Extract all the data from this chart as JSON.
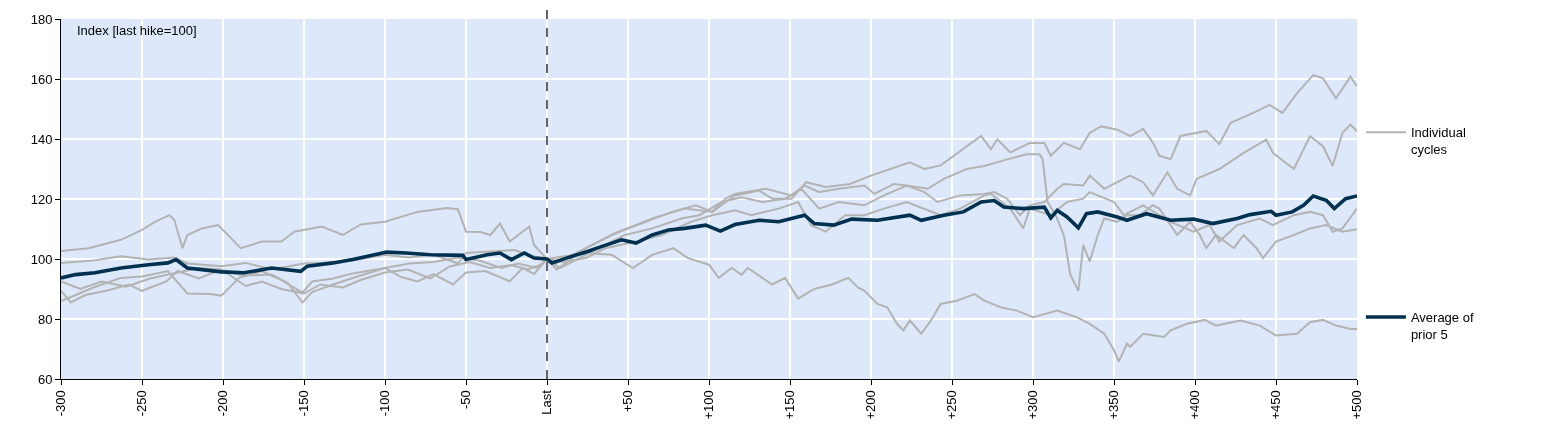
{
  "chart_data": {
    "type": "line",
    "ylabel": "Index [last hike=100]",
    "xlim": [
      -300,
      500
    ],
    "xticks": [
      -300,
      -250,
      -200,
      -150,
      -100,
      -50,
      {
        "value": 0,
        "label": "Last"
      },
      {
        "value": 50,
        "label": "+50"
      },
      {
        "value": 100,
        "label": "+100"
      },
      {
        "value": 150,
        "label": "+150"
      },
      {
        "value": 200,
        "label": "+200"
      },
      {
        "value": 250,
        "label": "+250"
      },
      {
        "value": 300,
        "label": "+300"
      },
      {
        "value": 350,
        "label": "+350"
      },
      {
        "value": 400,
        "label": "+400"
      },
      {
        "value": 450,
        "label": "+450"
      },
      {
        "value": 500,
        "label": "+500"
      }
    ],
    "ylim": [
      60,
      180
    ],
    "yticks": [
      60,
      80,
      100,
      120,
      140,
      160,
      180
    ],
    "grid": true,
    "legend": "right",
    "line_style": "solid",
    "ref_lines": [
      {
        "axis": "x",
        "value": 0,
        "color": "#000000",
        "line_style": "dashed"
      }
    ],
    "series": [
      {
        "name": "Individual cycles",
        "color": "#b3b3b3",
        "x": [
          -300,
          -283,
          -263,
          -250,
          -242,
          -233,
          -230,
          -225,
          -222,
          -213,
          -203,
          -193,
          -189,
          -176,
          -164,
          -156,
          -139,
          -126,
          -115,
          -100,
          -80,
          -62,
          -55,
          -50,
          -41,
          -35,
          -29,
          -23,
          -11,
          -8,
          0,
          5,
          24,
          40,
          65,
          85,
          102,
          116,
          131,
          139,
          151,
          160,
          172,
          187,
          200,
          224,
          233,
          243,
          268,
          274,
          278,
          286,
          298,
          307,
          311,
          319,
          329,
          335,
          342,
          352,
          360,
          368,
          374,
          378,
          385,
          391,
          407,
          415,
          422,
          438,
          446,
          454,
          463,
          473,
          479,
          487,
          496,
          500
        ],
        "values": [
          102.7,
          103.6,
          106.4,
          109.7,
          112.4,
          114.6,
          113,
          103.6,
          108,
          110.2,
          111.3,
          105.8,
          103.6,
          105.8,
          105.8,
          109.1,
          110.8,
          108,
          111.5,
          112.4,
          115.7,
          117,
          116.6,
          109.1,
          109,
          108,
          111.8,
          105.8,
          110.8,
          104.7,
          100,
          98.5,
          103.6,
          108,
          113.5,
          116.8,
          115.7,
          121.2,
          122.8,
          120.1,
          120.1,
          125.6,
          124,
          125,
          127.8,
          132.2,
          130,
          131.2,
          141,
          136.6,
          139.9,
          135.5,
          138.7,
          138.7,
          134.4,
          138.7,
          136.6,
          142,
          144.2,
          143.1,
          141,
          143.4,
          138.8,
          134.4,
          133.3,
          141,
          142.7,
          138.3,
          145.4,
          149.2,
          151.4,
          148.7,
          155.3,
          161.3,
          160.2,
          153.6,
          160.8,
          157.5
        ]
      },
      {
        "color": "#b3b3b3",
        "x": [
          -300,
          -280,
          -263,
          -246,
          -230,
          -222,
          -201,
          -186,
          -170,
          -150,
          -132,
          -120,
          -100,
          -85,
          -70,
          -55,
          -50,
          -35,
          -20,
          -10,
          0,
          8,
          24,
          36,
          48,
          65,
          83,
          94,
          108,
          120,
          133,
          147,
          157,
          168,
          180,
          196,
          208,
          222,
          233,
          241,
          255,
          270,
          276,
          284,
          292,
          298,
          307,
          315,
          319,
          331,
          335,
          344,
          352,
          360,
          368,
          374,
          383,
          389,
          397,
          401,
          415,
          430,
          444,
          448,
          461,
          471,
          479,
          485,
          491,
          496,
          500
        ],
        "values": [
          98.7,
          99.5,
          100.9,
          99.8,
          100.5,
          98.5,
          97.6,
          98.7,
          96.5,
          98.5,
          98.8,
          99.5,
          101.4,
          100.5,
          101.5,
          98.5,
          102,
          102.5,
          103,
          101,
          100,
          97,
          101.4,
          104.7,
          108,
          110.2,
          113.5,
          114.6,
          119,
          120.6,
          119,
          120.1,
          123.4,
          116.8,
          119,
          117.9,
          121.2,
          124.5,
          122.3,
          119,
          121.2,
          121.7,
          122.3,
          120.1,
          114.6,
          117.9,
          119,
          123.4,
          125,
          124.5,
          127.8,
          123.4,
          125.6,
          127.8,
          125.6,
          121.2,
          128.9,
          123.4,
          121.2,
          126.7,
          130,
          135.4,
          139.8,
          135.4,
          130,
          140.9,
          137.6,
          131,
          142,
          144.8,
          142.6
        ]
      },
      {
        "color": "#b3b3b3",
        "x": [
          -300,
          -291,
          -280,
          -263,
          -250,
          -234,
          -222,
          -208,
          -201,
          -190,
          -176,
          -164,
          -151,
          -145,
          -132,
          -120,
          -100,
          -90,
          -80,
          -70,
          -58,
          -50,
          -38,
          -23,
          -15,
          -8,
          0,
          6,
          24,
          44,
          61,
          77,
          92,
          102,
          110,
          116,
          135,
          151,
          159,
          168,
          180,
          196,
          202,
          214,
          222,
          235,
          245,
          259,
          270,
          284,
          296,
          304,
          306,
          309,
          314,
          319,
          323,
          328,
          331,
          335,
          340,
          344,
          352,
          358,
          366,
          374,
          378,
          389,
          397,
          403,
          407,
          413,
          424,
          430,
          438,
          442,
          450,
          461,
          471,
          481,
          491,
          500
        ],
        "values": [
          86,
          88,
          90.5,
          93.7,
          94.2,
          96,
          88.5,
          88.3,
          87.8,
          93.7,
          96,
          93,
          88.8,
          92.5,
          93.5,
          95.2,
          97,
          94,
          92.5,
          95,
          91.5,
          95.5,
          96,
          92.6,
          97,
          95,
          100,
          96.5,
          103.6,
          109.1,
          112.4,
          115.7,
          117.9,
          115.7,
          120.1,
          121.7,
          123.4,
          121.2,
          124.5,
          122.3,
          123.4,
          124.5,
          121.7,
          125,
          124.5,
          123.4,
          126.7,
          130,
          131,
          133.2,
          134.9,
          134.9,
          133.2,
          119,
          114.6,
          108,
          94.8,
          89.4,
          104.7,
          99.2,
          108,
          113.5,
          112.4,
          114.6,
          114.6,
          117.9,
          116.8,
          108,
          112.4,
          108,
          103.6,
          108,
          103.6,
          108,
          103.6,
          100.3,
          105.8,
          108,
          110.2,
          111.3,
          109.1,
          109.9
        ]
      },
      {
        "color": "#b3b3b3",
        "x": [
          -300,
          -294,
          -285,
          -272,
          -258,
          -250,
          -235,
          -228,
          -215,
          -201,
          -186,
          -176,
          -164,
          -150,
          -140,
          -126,
          -115,
          -100,
          -86,
          -72,
          -60,
          -48,
          -35,
          -22,
          -12,
          -4,
          0,
          10,
          24,
          36,
          55,
          71,
          89,
          102,
          116,
          126,
          143,
          155,
          163,
          172,
          184,
          196,
          208,
          222,
          243,
          255,
          270,
          274,
          286,
          294,
          298,
          311,
          321,
          331,
          335,
          350,
          356,
          368,
          385,
          399,
          409,
          415,
          426,
          440,
          448,
          461,
          471,
          479,
          485,
          491,
          500
        ],
        "values": [
          89.4,
          85.5,
          88,
          89.4,
          91.5,
          89.4,
          92.5,
          96,
          93.5,
          96.5,
          91,
          92.5,
          90,
          88.5,
          91.5,
          90.5,
          93,
          95.5,
          96.5,
          93.5,
          97.5,
          99,
          97,
          98,
          96.5,
          98,
          100,
          99,
          100.3,
          103.6,
          105.8,
          108,
          112.4,
          114.6,
          116.2,
          114.6,
          116.8,
          119,
          111.3,
          109.1,
          114.6,
          114.6,
          116.8,
          119,
          114.6,
          116.8,
          121.2,
          121.7,
          116.8,
          110.2,
          116.8,
          114.6,
          119,
          120.1,
          122.3,
          119,
          114.6,
          117.9,
          112.4,
          109.1,
          111.3,
          105.8,
          111.3,
          113.5,
          111.3,
          114.6,
          115.7,
          114.6,
          109.1,
          110.2,
          116.8
        ]
      },
      {
        "color": "#b3b3b3",
        "x": [
          -300,
          -288,
          -275,
          -260,
          -245,
          -228,
          -215,
          -201,
          -188,
          -170,
          -160,
          -151,
          -145,
          -132,
          -118,
          -100,
          -85,
          -70,
          -55,
          -42,
          -28,
          -18,
          -6,
          0,
          24,
          40,
          53,
          65,
          78,
          87,
          100,
          106,
          114,
          120,
          124,
          139,
          147,
          155,
          165,
          176,
          186,
          192,
          196,
          204,
          210,
          216,
          220,
          224,
          231,
          237,
          243,
          253,
          264,
          270,
          280,
          290,
          300,
          315,
          327,
          335,
          344,
          350,
          353,
          358,
          360,
          368,
          381,
          385,
          395,
          406,
          413,
          428,
          440,
          450,
          463,
          471,
          479,
          487,
          496,
          500
        ],
        "values": [
          92.5,
          90,
          92.5,
          90.8,
          93.5,
          95.5,
          97,
          96.5,
          94.5,
          94.8,
          92,
          85.5,
          89,
          91.5,
          94,
          97,
          98.5,
          99,
          100.5,
          99.5,
          97,
          98.5,
          97,
          100,
          102,
          101.4,
          97,
          101.4,
          103.6,
          100.3,
          98.1,
          93.7,
          97,
          94.8,
          97,
          91.5,
          93.7,
          86.8,
          90,
          91.5,
          93.7,
          90.5,
          89.4,
          85,
          83.9,
          78.4,
          76.2,
          79.5,
          75.1,
          79.5,
          85,
          86.1,
          88.3,
          86.1,
          83.9,
          82.8,
          80.6,
          82.8,
          80.6,
          78.4,
          75.1,
          69.6,
          65.8,
          71.8,
          70.7,
          75.1,
          74,
          76.2,
          78.4,
          79.7,
          77.8,
          79.5,
          77.8,
          74.5,
          75.1,
          78.9,
          79.7,
          77.8,
          76.7,
          76.7
        ]
      },
      {
        "name": "Average of prior 5",
        "color": "#003150",
        "x": [
          -300,
          -291,
          -279,
          -263,
          -246,
          -234,
          -229,
          -222,
          -201,
          -187,
          -170,
          -152,
          -148,
          -132,
          -120,
          -99,
          -87,
          -72,
          -52,
          -50,
          -37,
          -29,
          -22,
          -14,
          -8,
          0,
          3,
          12,
          25,
          34,
          46,
          55,
          65,
          75,
          85,
          98,
          107,
          116,
          131,
          143,
          159,
          165,
          177,
          188,
          204,
          224,
          231,
          245,
          257,
          268,
          276,
          282,
          294,
          307,
          311,
          315,
          321,
          328,
          333,
          340,
          352,
          358,
          370,
          385,
          399,
          411,
          426,
          434,
          447,
          450,
          460,
          467,
          473,
          481,
          486,
          493,
          500
        ],
        "values": [
          93.7,
          94.8,
          95.4,
          97,
          98.1,
          98.7,
          99.8,
          97,
          95.7,
          95.4,
          97,
          95.9,
          97.6,
          98.7,
          99.8,
          102.3,
          102,
          101.4,
          101.2,
          99.8,
          101.4,
          102,
          99.8,
          102,
          100.3,
          100,
          98.7,
          100.3,
          102.5,
          104.2,
          106.4,
          105.3,
          108,
          109.7,
          110.2,
          111.3,
          109.3,
          111.5,
          112.9,
          112.4,
          114.6,
          111.8,
          111.3,
          113.3,
          112.9,
          114.6,
          112.9,
          114.6,
          115.7,
          119,
          119.5,
          117.3,
          116.8,
          117.3,
          113.7,
          116.2,
          114,
          110.4,
          115.1,
          115.7,
          114,
          112.9,
          115.1,
          112.9,
          113.3,
          111.8,
          113.5,
          114.8,
          115.9,
          114.6,
          115.7,
          117.9,
          121,
          119.6,
          116.8,
          120.1,
          121
        ]
      }
    ]
  }
}
